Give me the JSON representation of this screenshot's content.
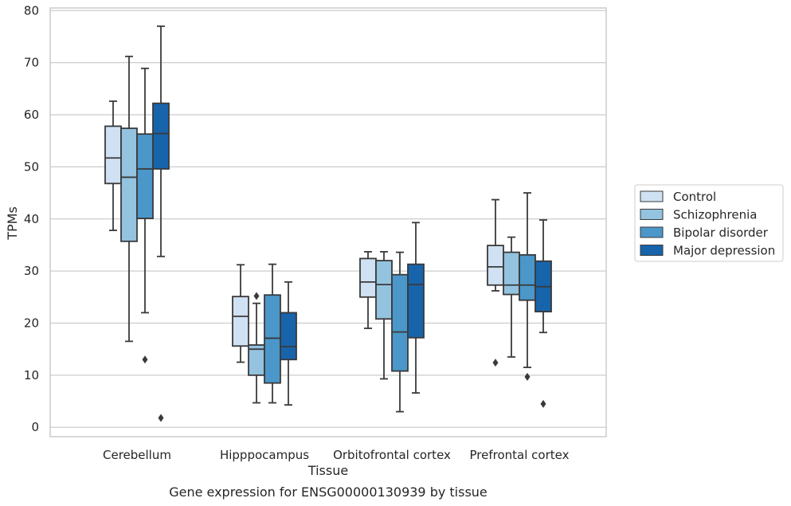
{
  "chart_data": {
    "type": "box",
    "title": "",
    "xlabel": "Tissue",
    "ylabel": "TPMs",
    "caption": "Gene expression for ENSG00000130939 by tissue",
    "ylim": [
      -1.8,
      80.5
    ],
    "yticks": [
      0,
      10,
      20,
      30,
      40,
      50,
      60,
      70,
      80
    ],
    "grid": "horizontal",
    "legend_position": "right",
    "categories": [
      "Cerebellum",
      "Hipppocampus",
      "Orbitofrontal cortex",
      "Prefrontal cortex"
    ],
    "series": [
      {
        "name": "Control",
        "color": "#cfe1f2",
        "boxes": [
          {
            "whislo": 37.8,
            "q1": 46.8,
            "med": 51.7,
            "q3": 57.8,
            "whishi": 62.6,
            "fliers": []
          },
          {
            "whislo": 12.5,
            "q1": 15.6,
            "med": 21.3,
            "q3": 25.1,
            "whishi": 31.2,
            "fliers": []
          },
          {
            "whislo": 19.0,
            "q1": 25.0,
            "med": 27.9,
            "q3": 32.4,
            "whishi": 33.7,
            "fliers": []
          },
          {
            "whislo": 26.2,
            "q1": 27.3,
            "med": 30.8,
            "q3": 34.9,
            "whishi": 43.7,
            "fliers": [
              12.4
            ]
          }
        ]
      },
      {
        "name": "Schizophrenia",
        "color": "#93c3df",
        "boxes": [
          {
            "whislo": 16.5,
            "q1": 35.7,
            "med": 48.0,
            "q3": 57.4,
            "whishi": 71.2,
            "fliers": []
          },
          {
            "whislo": 4.7,
            "q1": 10.0,
            "med": 15.0,
            "q3": 15.8,
            "whishi": 23.8,
            "fliers": [
              25.2
            ]
          },
          {
            "whislo": 9.3,
            "q1": 20.8,
            "med": 27.4,
            "q3": 32.0,
            "whishi": 33.7,
            "fliers": []
          },
          {
            "whislo": 13.5,
            "q1": 25.5,
            "med": 27.3,
            "q3": 33.6,
            "whishi": 36.5,
            "fliers": []
          }
        ]
      },
      {
        "name": "Bipolar disorder",
        "color": "#4b97c9",
        "boxes": [
          {
            "whislo": 22.0,
            "q1": 40.1,
            "med": 49.6,
            "q3": 56.3,
            "whishi": 68.9,
            "fliers": [
              13.0
            ]
          },
          {
            "whislo": 4.7,
            "q1": 8.5,
            "med": 17.1,
            "q3": 25.4,
            "whishi": 31.3,
            "fliers": []
          },
          {
            "whislo": 3.0,
            "q1": 10.8,
            "med": 18.3,
            "q3": 29.3,
            "whishi": 33.6,
            "fliers": []
          },
          {
            "whislo": 11.5,
            "q1": 24.4,
            "med": 27.3,
            "q3": 33.1,
            "whishi": 45.0,
            "fliers": [
              9.7
            ]
          }
        ]
      },
      {
        "name": "Major depression",
        "color": "#1764ab",
        "boxes": [
          {
            "whislo": 32.8,
            "q1": 49.6,
            "med": 56.4,
            "q3": 62.2,
            "whishi": 77.0,
            "fliers": [
              1.8
            ]
          },
          {
            "whislo": 4.3,
            "q1": 13.0,
            "med": 15.5,
            "q3": 22.0,
            "whishi": 27.9,
            "fliers": []
          },
          {
            "whislo": 6.6,
            "q1": 17.2,
            "med": 27.4,
            "q3": 31.3,
            "whishi": 39.3,
            "fliers": []
          },
          {
            "whislo": 18.2,
            "q1": 22.2,
            "med": 27.0,
            "q3": 31.9,
            "whishi": 39.8,
            "fliers": [
              4.5
            ]
          }
        ]
      }
    ]
  }
}
